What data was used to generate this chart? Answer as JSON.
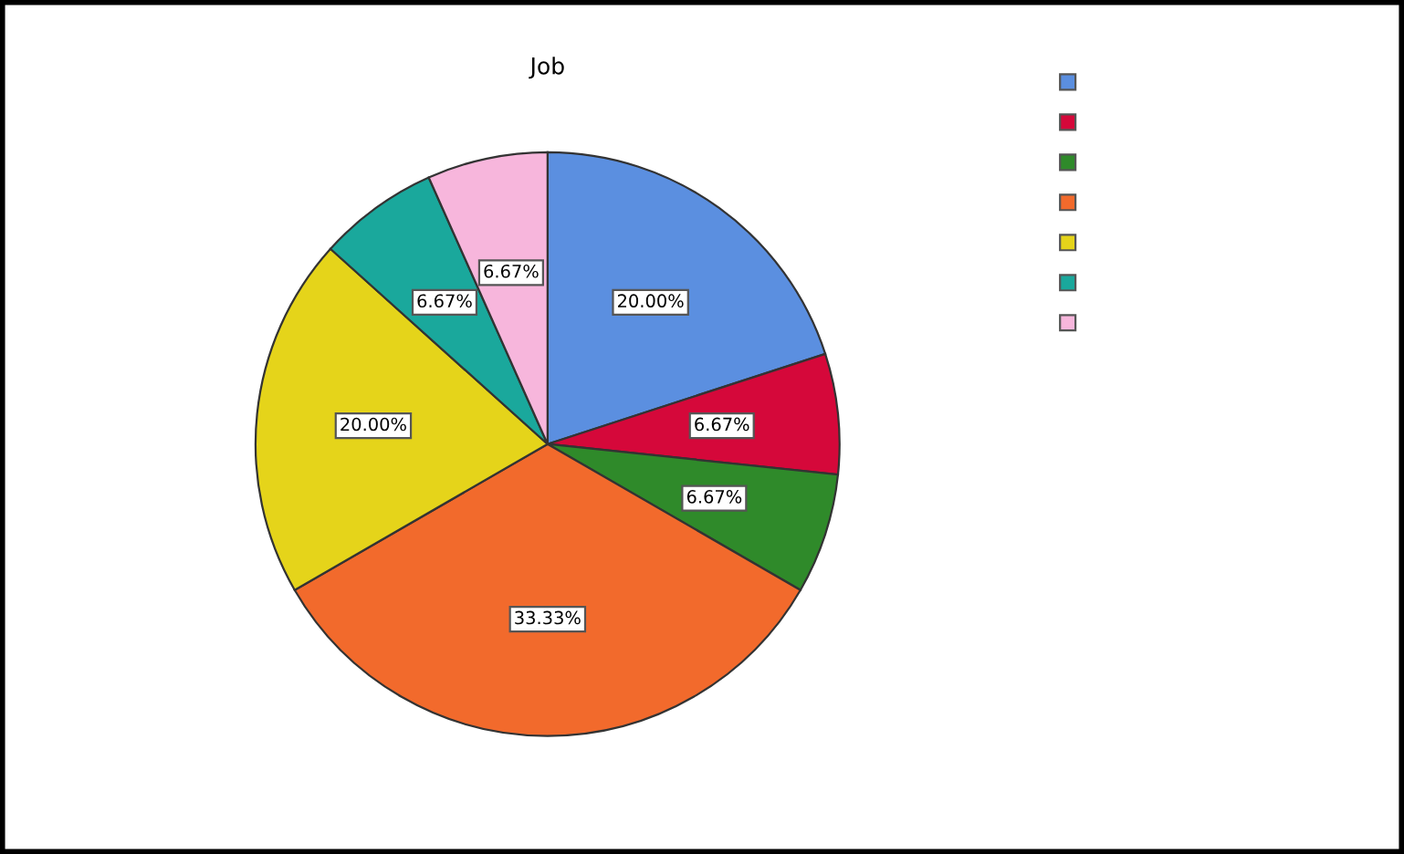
{
  "chart_data": {
    "type": "pie",
    "title": "Job",
    "categories": [
      null,
      null,
      null,
      null,
      null,
      null,
      null
    ],
    "values": [
      20.0,
      6.67,
      6.67,
      33.33,
      20.0,
      6.67,
      6.67
    ],
    "colors": [
      "#5b8fe0",
      "#d5083a",
      "#2f8a2a",
      "#f26a2c",
      "#e5d41a",
      "#1aa89c",
      "#f7b6dc"
    ],
    "value_labels": [
      "20.00%",
      "6.67%",
      "6.67%",
      "33.33%",
      "20.00%",
      "6.67%",
      "6.67%"
    ]
  }
}
